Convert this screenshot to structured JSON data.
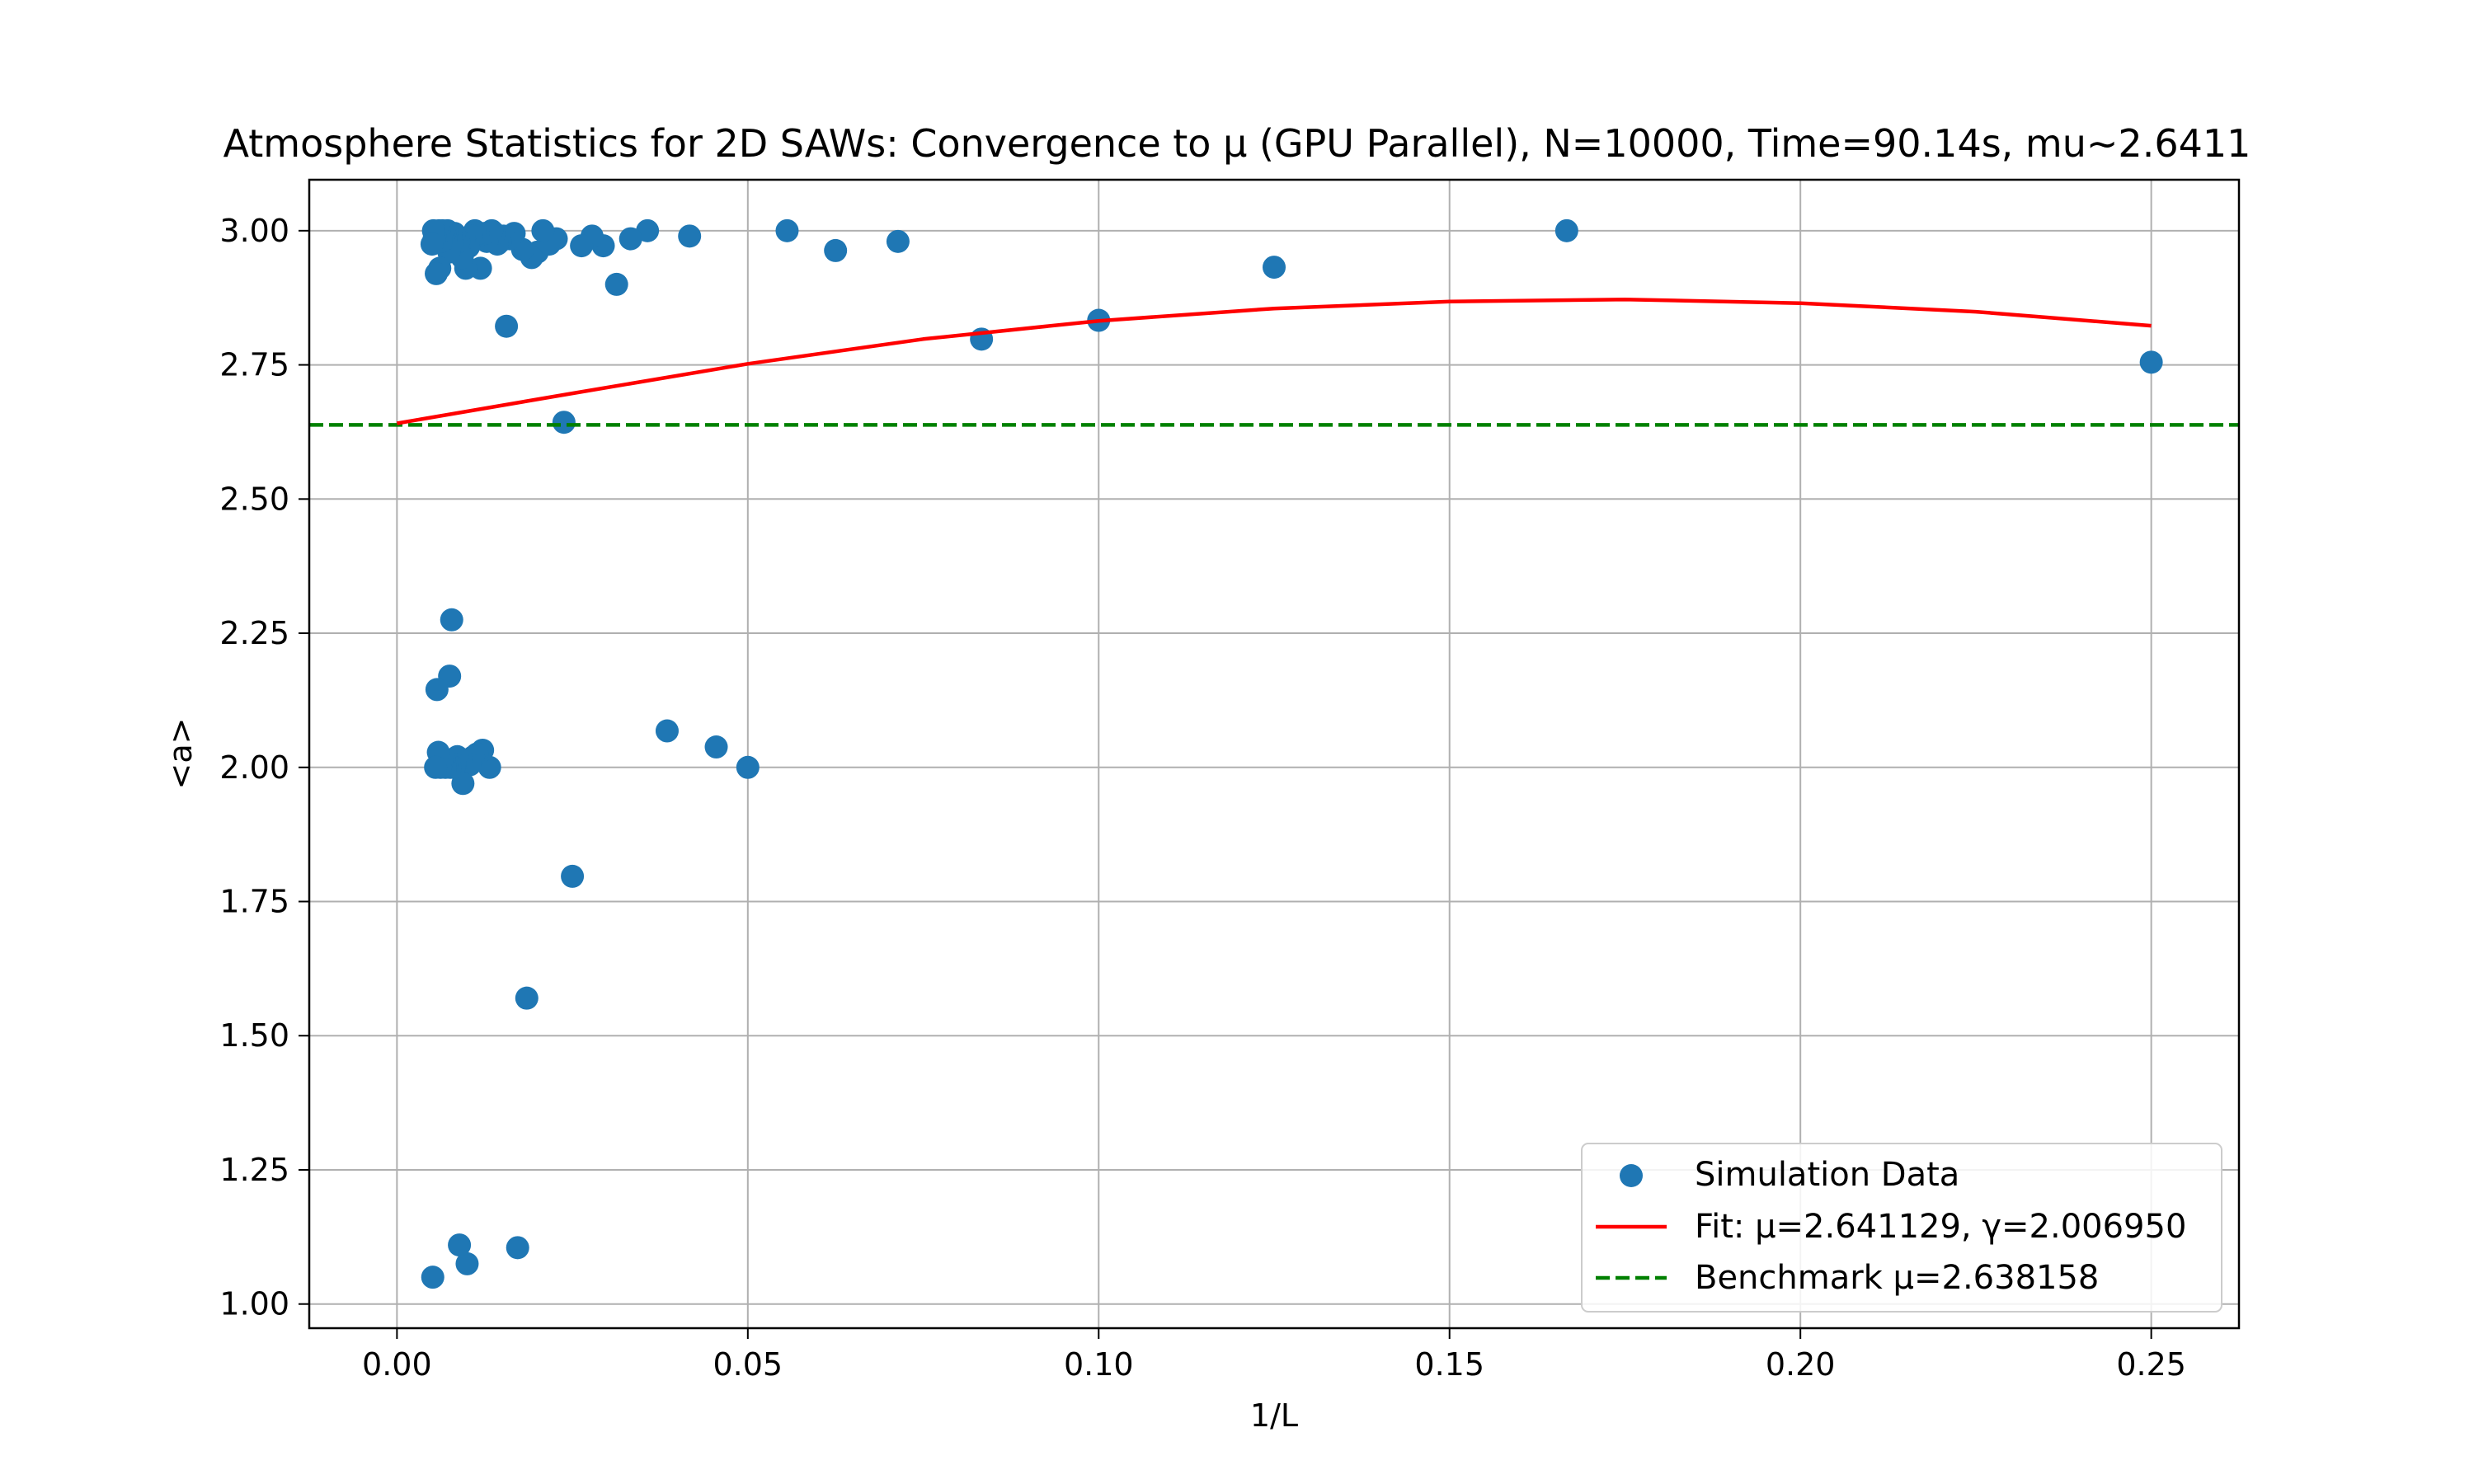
{
  "chart_data": {
    "type": "scatter",
    "title": "Atmosphere Statistics for 2D SAWs: Convergence to μ (GPU Parallel), N=10000, Time=90.14s, mu~2.6411",
    "xlabel": "1/L",
    "ylabel": "<a>",
    "xlim": [
      -0.0125,
      0.2625
    ],
    "ylim": [
      0.955,
      3.095
    ],
    "x_ticks": [
      0.0,
      0.05,
      0.1,
      0.15,
      0.2,
      0.25
    ],
    "x_tick_labels": [
      "0.00",
      "0.05",
      "0.10",
      "0.15",
      "0.20",
      "0.25"
    ],
    "y_ticks": [
      1.0,
      1.25,
      1.5,
      1.75,
      2.0,
      2.25,
      2.5,
      2.75,
      3.0
    ],
    "y_tick_labels": [
      "1.00",
      "1.25",
      "1.50",
      "1.75",
      "2.00",
      "2.25",
      "2.50",
      "2.75",
      "3.00"
    ],
    "grid": true,
    "legend_position": "bottom-right",
    "colors": {
      "scatter": "#1f77b4",
      "fit": "#ff0000",
      "benchmark": "#008000"
    },
    "series": [
      {
        "name": "Simulation Data",
        "kind": "scatter",
        "points": [
          [
            0.25,
            2.755
          ],
          [
            0.1667,
            3.0
          ],
          [
            0.125,
            2.932
          ],
          [
            0.1,
            2.833
          ],
          [
            0.0833,
            2.798
          ],
          [
            0.0714,
            2.98
          ],
          [
            0.0625,
            2.963
          ],
          [
            0.0556,
            3.0
          ],
          [
            0.05,
            2.0
          ],
          [
            0.0455,
            2.038
          ],
          [
            0.0417,
            2.99
          ],
          [
            0.0385,
            2.068
          ],
          [
            0.0357,
            3.0
          ],
          [
            0.0333,
            2.985
          ],
          [
            0.0313,
            2.9
          ],
          [
            0.0294,
            2.972
          ],
          [
            0.0278,
            2.99
          ],
          [
            0.0263,
            2.972
          ],
          [
            0.025,
            1.797
          ],
          [
            0.0238,
            2.643
          ],
          [
            0.0227,
            2.985
          ],
          [
            0.0217,
            2.975
          ],
          [
            0.0208,
            3.0
          ],
          [
            0.02,
            2.96
          ],
          [
            0.0192,
            2.95
          ],
          [
            0.0185,
            1.57
          ],
          [
            0.0179,
            2.965
          ],
          [
            0.0172,
            1.105
          ],
          [
            0.0167,
            2.995
          ],
          [
            0.0161,
            2.985
          ],
          [
            0.0156,
            2.822
          ],
          [
            0.0152,
            2.99
          ],
          [
            0.0147,
            2.98
          ],
          [
            0.0143,
            2.975
          ],
          [
            0.0139,
            2.995
          ],
          [
            0.0135,
            3.0
          ],
          [
            0.0132,
            2.0
          ],
          [
            0.0128,
            2.98
          ],
          [
            0.0125,
            2.995
          ],
          [
            0.0122,
            2.032
          ],
          [
            0.0119,
            2.93
          ],
          [
            0.0116,
            2.995
          ],
          [
            0.0114,
            2.025
          ],
          [
            0.0111,
            3.0
          ],
          [
            0.0109,
            2.02
          ],
          [
            0.0106,
            2.99
          ],
          [
            0.0104,
            2.005
          ],
          [
            0.0102,
            2.97
          ],
          [
            0.01,
            1.075
          ],
          [
            0.0098,
            2.93
          ],
          [
            0.0096,
            2.985
          ],
          [
            0.0094,
            1.97
          ],
          [
            0.0093,
            2.95
          ],
          [
            0.0091,
            2.015
          ],
          [
            0.0089,
            1.11
          ],
          [
            0.0088,
            2.98
          ],
          [
            0.0086,
            2.02
          ],
          [
            0.0085,
            2.99
          ],
          [
            0.0083,
            2.005
          ],
          [
            0.0082,
            2.995
          ],
          [
            0.0081,
            2.0
          ],
          [
            0.0079,
            2.98
          ],
          [
            0.0078,
            2.275
          ],
          [
            0.0077,
            2.99
          ],
          [
            0.0076,
            2.0
          ],
          [
            0.0075,
            2.17
          ],
          [
            0.0074,
            2.96
          ],
          [
            0.0072,
            3.0
          ],
          [
            0.0071,
            2.005
          ],
          [
            0.007,
            2.985
          ],
          [
            0.0069,
            2.0
          ],
          [
            0.0068,
            2.995
          ],
          [
            0.0067,
            2.015
          ],
          [
            0.0066,
            2.99
          ],
          [
            0.0065,
            3.0
          ],
          [
            0.0064,
            2.01
          ],
          [
            0.0063,
            2.98
          ],
          [
            0.0062,
            2.0
          ],
          [
            0.0061,
            2.93
          ],
          [
            0.006,
            3.0
          ],
          [
            0.0059,
            2.028
          ],
          [
            0.0058,
            2.992
          ],
          [
            0.0057,
            2.145
          ],
          [
            0.0056,
            2.92
          ],
          [
            0.0055,
            2.0
          ],
          [
            0.0054,
            2.99
          ],
          [
            0.0053,
            2.985
          ],
          [
            0.0052,
            3.0
          ],
          [
            0.0051,
            1.05
          ],
          [
            0.005,
            2.975
          ]
        ]
      },
      {
        "name": "Fit: μ=2.641129, γ=2.006950",
        "kind": "line",
        "points": [
          [
            0.0,
            2.641
          ],
          [
            0.025,
            2.697
          ],
          [
            0.05,
            2.752
          ],
          [
            0.075,
            2.798
          ],
          [
            0.1,
            2.832
          ],
          [
            0.125,
            2.855
          ],
          [
            0.15,
            2.868
          ],
          [
            0.175,
            2.872
          ],
          [
            0.2,
            2.865
          ],
          [
            0.225,
            2.849
          ],
          [
            0.25,
            2.823
          ]
        ]
      },
      {
        "name": "Benchmark μ=2.638158",
        "kind": "hline",
        "y": 2.638158
      }
    ]
  }
}
